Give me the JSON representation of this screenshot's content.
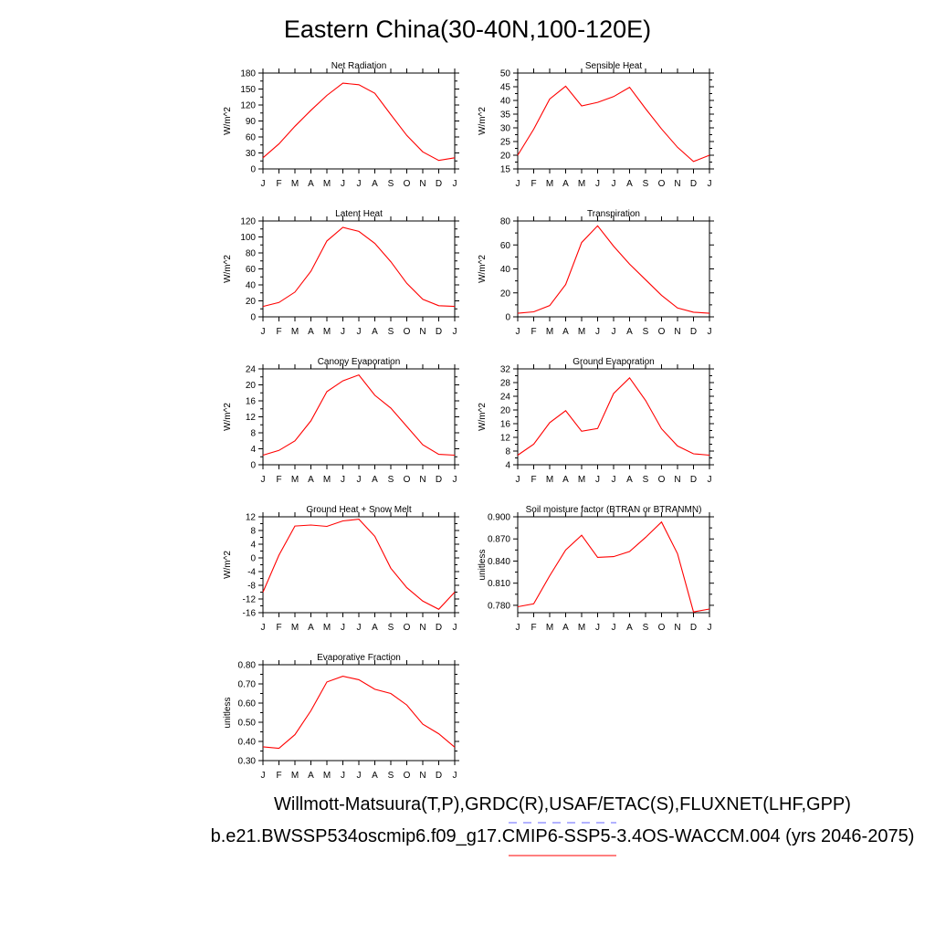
{
  "figure": {
    "title": "Eastern China(30-40N,100-120E)",
    "footer_line1": "Willmott-Matsuura(T,P),GRDC(R),USAF/ETAC(S),FLUXNET(LHF,GPP)",
    "footer_line2": "b.e21.BWSSP534oscmip6.f09_g17.CMIP6-SSP5-3.4OS-WACCM.004 (yrs 2046-2075)",
    "legend_colors": {
      "obs_dashed": "#6666ff",
      "model_line": "#ff0000"
    }
  },
  "chart_data": [
    {
      "type": "line",
      "title": "Net Radiation",
      "ylabel": "W/m^2",
      "categories": [
        "J",
        "F",
        "M",
        "A",
        "M",
        "J",
        "J",
        "A",
        "S",
        "O",
        "N",
        "D",
        "J"
      ],
      "ylim": [
        0,
        180
      ],
      "yticks": [
        0,
        30,
        60,
        90,
        120,
        150,
        180
      ],
      "tick_decimals": 0,
      "series": [
        {
          "color": "#ff0000",
          "values": [
            21,
            47,
            80,
            110,
            138,
            161,
            158,
            142,
            102,
            63,
            32,
            16,
            21
          ]
        }
      ]
    },
    {
      "type": "line",
      "title": "Sensible Heat",
      "ylabel": "W/m^2",
      "categories": [
        "J",
        "F",
        "M",
        "A",
        "M",
        "J",
        "J",
        "A",
        "S",
        "O",
        "N",
        "D",
        "J"
      ],
      "ylim": [
        15,
        50
      ],
      "yticks": [
        15,
        20,
        25,
        30,
        35,
        40,
        45,
        50
      ],
      "tick_decimals": 0,
      "series": [
        {
          "color": "#ff0000",
          "values": [
            20,
            29.5,
            40.5,
            45.2,
            38,
            39.3,
            41.4,
            44.8,
            37,
            29.6,
            22.9,
            17.7,
            20
          ]
        }
      ]
    },
    {
      "type": "line",
      "title": "Latent Heat",
      "ylabel": "W/m^2",
      "categories": [
        "J",
        "F",
        "M",
        "A",
        "M",
        "J",
        "J",
        "A",
        "S",
        "O",
        "N",
        "D",
        "J"
      ],
      "ylim": [
        0,
        120
      ],
      "yticks": [
        0,
        20,
        40,
        60,
        80,
        100,
        120
      ],
      "tick_decimals": 0,
      "series": [
        {
          "color": "#ff0000",
          "values": [
            13,
            18,
            31,
            57,
            95,
            112,
            107,
            92,
            69,
            42,
            22,
            14,
            13
          ]
        }
      ]
    },
    {
      "type": "line",
      "title": "Transpiration",
      "ylabel": "W/m^2",
      "categories": [
        "J",
        "F",
        "M",
        "A",
        "M",
        "J",
        "J",
        "A",
        "S",
        "O",
        "N",
        "D",
        "J"
      ],
      "ylim": [
        0,
        80
      ],
      "yticks": [
        0,
        20,
        40,
        60,
        80
      ],
      "tick_decimals": 0,
      "series": [
        {
          "color": "#ff0000",
          "values": [
            3,
            4.2,
            9.4,
            27,
            62,
            76,
            59,
            44,
            31,
            18,
            7.4,
            3.9,
            3
          ]
        }
      ]
    },
    {
      "type": "line",
      "title": "Canopy Evaporation",
      "ylabel": "W/m^2",
      "categories": [
        "J",
        "F",
        "M",
        "A",
        "M",
        "J",
        "J",
        "A",
        "S",
        "O",
        "N",
        "D",
        "J"
      ],
      "ylim": [
        0,
        24
      ],
      "yticks": [
        0,
        4,
        8,
        12,
        16,
        20,
        24
      ],
      "tick_decimals": 0,
      "series": [
        {
          "color": "#ff0000",
          "values": [
            2.4,
            3.6,
            6,
            11,
            18.3,
            21,
            22.5,
            17.4,
            14.2,
            9.6,
            5,
            2.6,
            2.4
          ]
        }
      ]
    },
    {
      "type": "line",
      "title": "Ground Evaporation",
      "ylabel": "W/m^2",
      "categories": [
        "J",
        "F",
        "M",
        "A",
        "M",
        "J",
        "J",
        "A",
        "S",
        "O",
        "N",
        "D",
        "J"
      ],
      "ylim": [
        4,
        32
      ],
      "yticks": [
        4,
        8,
        12,
        16,
        20,
        24,
        28,
        32
      ],
      "tick_decimals": 0,
      "series": [
        {
          "color": "#ff0000",
          "values": [
            6.8,
            10,
            16.3,
            19.8,
            13.8,
            14.6,
            24.8,
            29.4,
            22.8,
            14.5,
            9.5,
            7.2,
            6.8
          ]
        }
      ]
    },
    {
      "type": "line",
      "title": "Ground Heat + Snow Melt",
      "ylabel": "W/m^2",
      "categories": [
        "J",
        "F",
        "M",
        "A",
        "M",
        "J",
        "J",
        "A",
        "S",
        "O",
        "N",
        "D",
        "J"
      ],
      "ylim": [
        -16,
        12
      ],
      "yticks": [
        -16,
        -12,
        -8,
        -4,
        0,
        4,
        8,
        12
      ],
      "tick_decimals": 0,
      "series": [
        {
          "color": "#ff0000",
          "values": [
            -10,
            0.8,
            9.3,
            9.6,
            9.2,
            10.8,
            11.3,
            6.3,
            -3,
            -8.7,
            -12.6,
            -15,
            -10
          ]
        }
      ]
    },
    {
      "type": "line",
      "title": "Soil moisture factor (BTRAN or BTRANMN)",
      "ylabel": "unitless",
      "categories": [
        "J",
        "F",
        "M",
        "A",
        "M",
        "J",
        "J",
        "A",
        "S",
        "O",
        "N",
        "D",
        "J"
      ],
      "ylim": [
        0.77,
        0.9
      ],
      "yticks": [
        0.78,
        0.81,
        0.84,
        0.87,
        0.9
      ],
      "tick_decimals": 3,
      "series": [
        {
          "color": "#ff0000",
          "values": [
            0.778,
            0.782,
            0.82,
            0.855,
            0.875,
            0.845,
            0.846,
            0.853,
            0.872,
            0.893,
            0.85,
            0.771,
            0.775
          ]
        }
      ]
    },
    {
      "type": "line",
      "title": "Evaporative Fraction",
      "ylabel": "unitless",
      "categories": [
        "J",
        "F",
        "M",
        "A",
        "M",
        "J",
        "J",
        "A",
        "S",
        "O",
        "N",
        "D",
        "J"
      ],
      "ylim": [
        0.3,
        0.8
      ],
      "yticks": [
        0.3,
        0.4,
        0.5,
        0.6,
        0.7,
        0.8
      ],
      "tick_decimals": 2,
      "series": [
        {
          "color": "#ff0000",
          "values": [
            0.372,
            0.364,
            0.435,
            0.56,
            0.71,
            0.74,
            0.722,
            0.672,
            0.65,
            0.59,
            0.49,
            0.44,
            0.37
          ]
        }
      ]
    }
  ]
}
